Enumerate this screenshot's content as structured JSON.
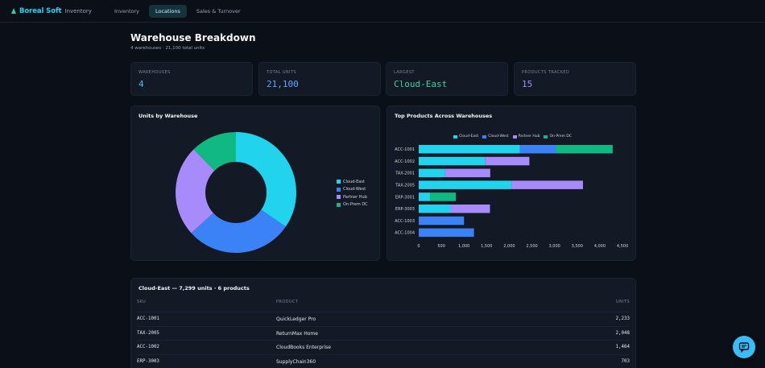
{
  "app": {
    "brand": "Boreal Soft",
    "section": "Inventory"
  },
  "nav": {
    "tabs": [
      {
        "label": "Inventory",
        "active": false
      },
      {
        "label": "Locations",
        "active": true
      },
      {
        "label": "Sales & Turnover",
        "active": false
      }
    ]
  },
  "page": {
    "title": "Warehouse Breakdown",
    "subtitle": "4 warehouses · 21,100 total units"
  },
  "stats": [
    {
      "label": "WAREHOUSES",
      "value": "4",
      "color": "#38bdf8"
    },
    {
      "label": "TOTAL UNITS",
      "value": "21,100",
      "color": "#60a5fa"
    },
    {
      "label": "LARGEST",
      "value": "Cloud-East",
      "color": "#34d399"
    },
    {
      "label": "PRODUCTS TRACKED",
      "value": "15",
      "color": "#a78bfa"
    }
  ],
  "colors": {
    "Cloud-East": "#22d3ee",
    "Cloud-West": "#3b82f6",
    "Partner Hub": "#a78bfa",
    "On-Prem DC": "#10b981"
  },
  "donut": {
    "title": "Units by Warehouse",
    "legend": [
      "Cloud-East",
      "Cloud-West",
      "Partner Hub",
      "On-Prem DC"
    ]
  },
  "bars": {
    "title": "Top Products Across Warehouses",
    "legend": [
      "Cloud-East",
      "Cloud-West",
      "Partner Hub",
      "On-Prem DC"
    ]
  },
  "chart_data": [
    {
      "type": "pie",
      "title": "Units by Warehouse",
      "categories": [
        "Cloud-East",
        "Cloud-West",
        "Partner Hub",
        "On-Prem DC"
      ],
      "values": [
        7299,
        6050,
        5150,
        2601
      ]
    },
    {
      "type": "bar",
      "orientation": "horizontal",
      "stacked": true,
      "title": "Top Products Across Warehouses",
      "categories": [
        "ACC-1001",
        "ACC-1002",
        "TAX-2001",
        "TAX-2005",
        "ERP-3001",
        "ERP-3003",
        "ACC-1003",
        "ACC-1004"
      ],
      "series": [
        {
          "name": "Cloud-East",
          "values": [
            2233,
            1464,
            580,
            2048,
            250,
            703,
            0,
            0
          ]
        },
        {
          "name": "Cloud-West",
          "values": [
            800,
            0,
            0,
            0,
            0,
            0,
            1000,
            1220
          ]
        },
        {
          "name": "Partner Hub",
          "values": [
            0,
            980,
            1000,
            1580,
            0,
            870,
            0,
            0
          ]
        },
        {
          "name": "On-Prem DC",
          "values": [
            1250,
            0,
            0,
            0,
            570,
            0,
            0,
            0
          ]
        }
      ],
      "xlim": [
        0,
        4500
      ],
      "xticks": [
        "0",
        "500",
        "1,000",
        "1,500",
        "2,000",
        "2,500",
        "3,000",
        "3,500",
        "4,000",
        "4,500"
      ]
    }
  ],
  "table": {
    "title": "Cloud-East — 7,299 units · 6 products",
    "headers": [
      "SKU",
      "PRODUCT",
      "UNITS"
    ],
    "rows": [
      [
        "ACC-1001",
        "QuickLedger Pro",
        "2,233"
      ],
      [
        "TAX-2005",
        "ReturnMax Home",
        "2,048"
      ],
      [
        "ACC-1002",
        "CloudBooks Enterprise",
        "1,464"
      ],
      [
        "ERP-3003",
        "SupplyChain360",
        "703"
      ]
    ]
  }
}
